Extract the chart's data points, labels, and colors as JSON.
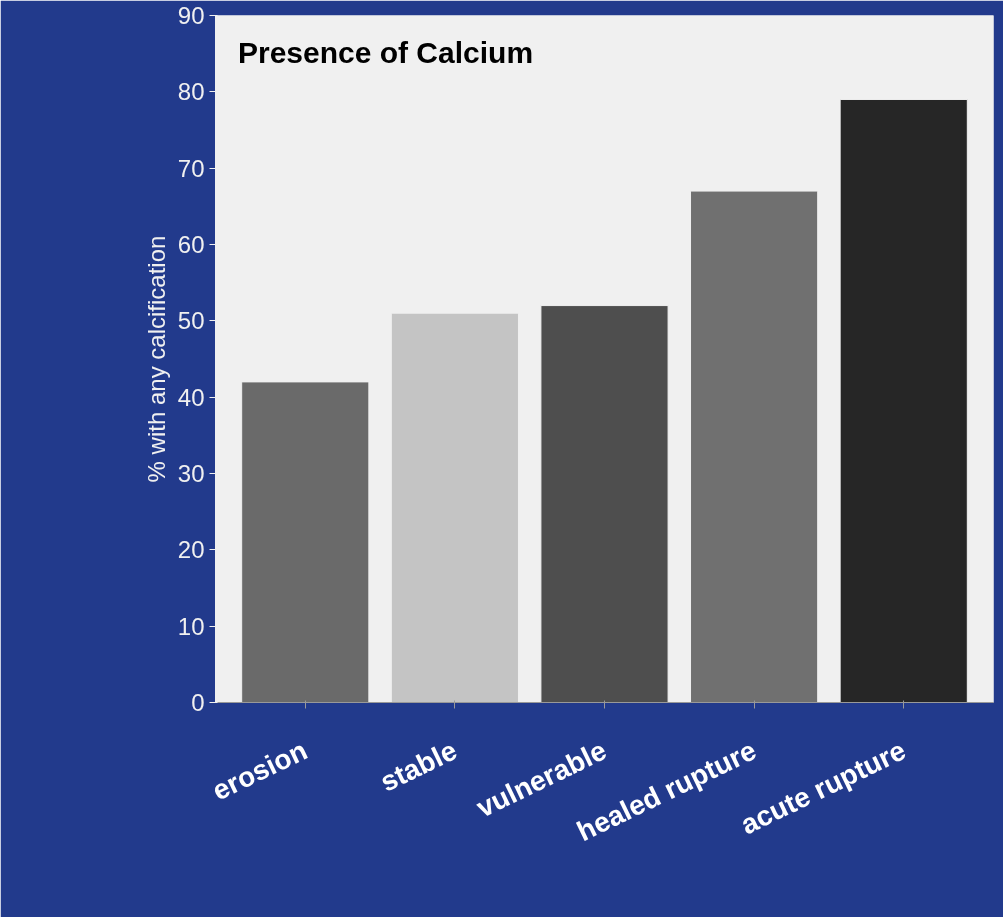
{
  "chart_data": {
    "type": "bar",
    "title": "Presence of Calcium",
    "ylabel": "% with any calcification",
    "categories": [
      "erosion",
      "stable",
      "vulnerable",
      "healed rupture",
      "acute rupture"
    ],
    "values": [
      42,
      51,
      52,
      67,
      79
    ],
    "colors": [
      "#6a6a6a",
      "#c4c4c4",
      "#4e4e4e",
      "#707070",
      "#262626"
    ],
    "ylim": [
      0,
      90
    ],
    "yticks": [
      0,
      10,
      20,
      30,
      40,
      50,
      60,
      70,
      80,
      90
    ],
    "grid": false
  }
}
